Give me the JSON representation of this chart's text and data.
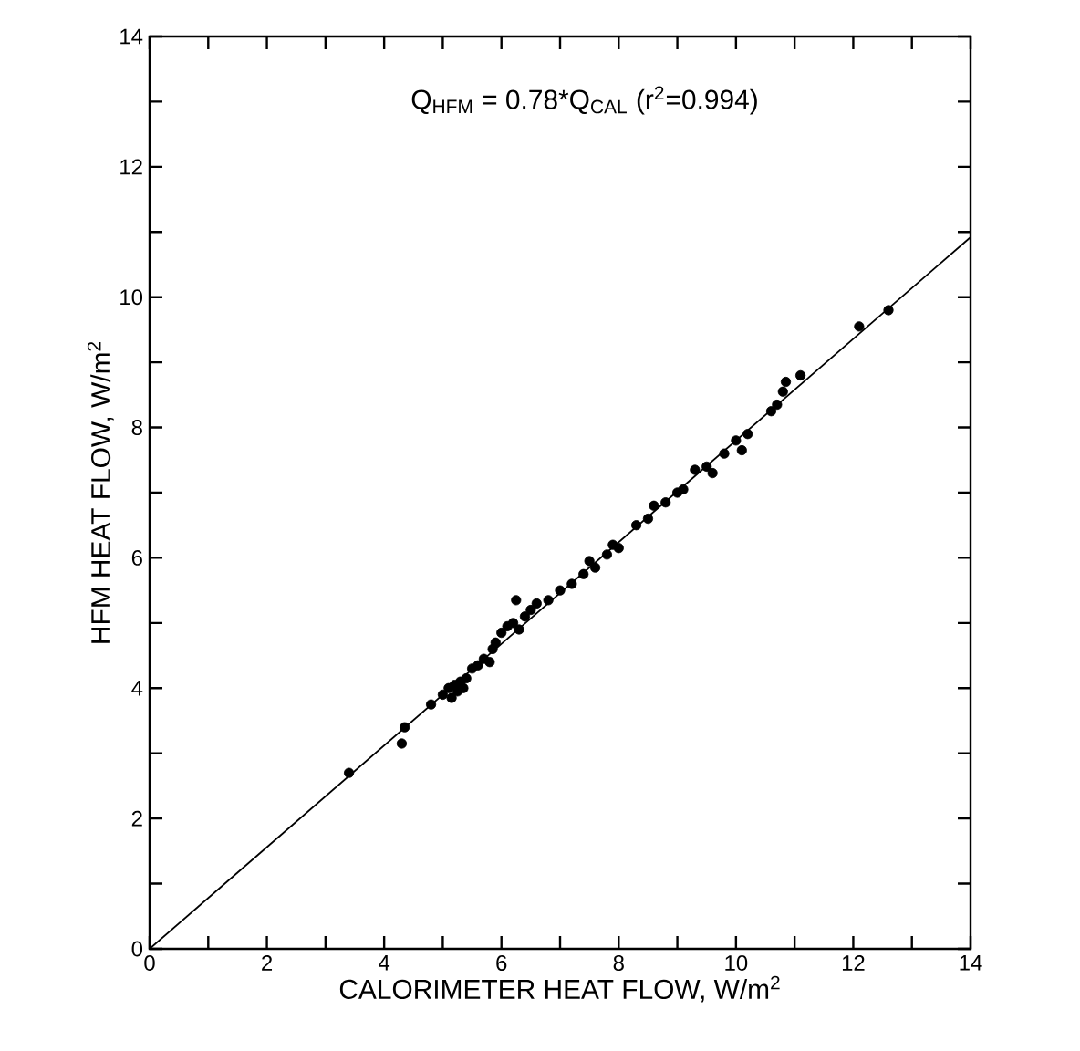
{
  "chart_data": {
    "type": "scatter",
    "xlabel": "CALORIMETER HEAT FLOW, W/m$^{2}$",
    "ylabel": "HFM HEAT FLOW, W/m$^{2}$",
    "annotations": [
      "Q$_{HFM}$ = 0.78*Q$_{CAL}$ (r$^{2}$=0.994)"
    ],
    "xlim": [
      0,
      14
    ],
    "ylim": [
      0,
      14
    ],
    "xticks": [
      0,
      {
        "value": 1,
        "label": null
      },
      2,
      {
        "value": 3,
        "label": null
      },
      4,
      {
        "value": 5,
        "label": null
      },
      6,
      {
        "value": 7,
        "label": null
      },
      8,
      {
        "value": 9,
        "label": null
      },
      10,
      {
        "value": 11,
        "label": null
      },
      12,
      {
        "value": 13,
        "label": null
      },
      14
    ],
    "yticks": [
      0,
      {
        "value": 1,
        "label": null
      },
      2,
      {
        "value": 3,
        "label": null
      },
      4,
      {
        "value": 5,
        "label": null
      },
      6,
      {
        "value": 7,
        "label": null
      },
      8,
      {
        "value": 9,
        "label": null
      },
      10,
      {
        "value": 11,
        "label": null
      },
      12,
      {
        "value": 13,
        "label": null
      },
      14
    ],
    "series": [
      {
        "marker": "circle",
        "color": "#000000",
        "x": [
          3.4,
          4.3,
          4.35,
          4.8,
          5.0,
          5.1,
          5.15,
          5.2,
          5.25,
          5.3,
          5.35,
          5.4,
          5.5,
          5.6,
          5.7,
          5.8,
          5.85,
          5.9,
          6.0,
          6.1,
          6.2,
          6.25,
          6.3,
          6.4,
          6.5,
          6.6,
          6.8,
          7.0,
          7.2,
          7.4,
          7.5,
          7.6,
          7.8,
          7.9,
          8.0,
          8.3,
          8.5,
          8.6,
          8.8,
          9.0,
          9.1,
          9.3,
          9.5,
          9.6,
          9.8,
          10.0,
          10.1,
          10.2,
          10.6,
          10.7,
          10.8,
          10.85,
          11.1,
          12.1,
          12.6
        ],
        "values": [
          2.7,
          3.15,
          3.4,
          3.75,
          3.9,
          4.0,
          3.85,
          4.05,
          3.95,
          4.1,
          4.0,
          4.15,
          4.3,
          4.35,
          4.45,
          4.4,
          4.6,
          4.7,
          4.85,
          4.95,
          5.0,
          5.35,
          4.9,
          5.1,
          5.2,
          5.3,
          5.35,
          5.5,
          5.6,
          5.75,
          5.95,
          5.85,
          6.05,
          6.2,
          6.15,
          6.5,
          6.6,
          6.8,
          6.85,
          7.0,
          7.05,
          7.35,
          7.4,
          7.3,
          7.6,
          7.8,
          7.65,
          7.9,
          8.25,
          8.35,
          8.55,
          8.7,
          8.8,
          9.55,
          9.8
        ]
      },
      {
        "type": "line",
        "color": "#000000",
        "marker": "none",
        "line_style": "solid",
        "x": [
          0,
          14
        ],
        "values": [
          0,
          10.92
        ]
      }
    ]
  }
}
